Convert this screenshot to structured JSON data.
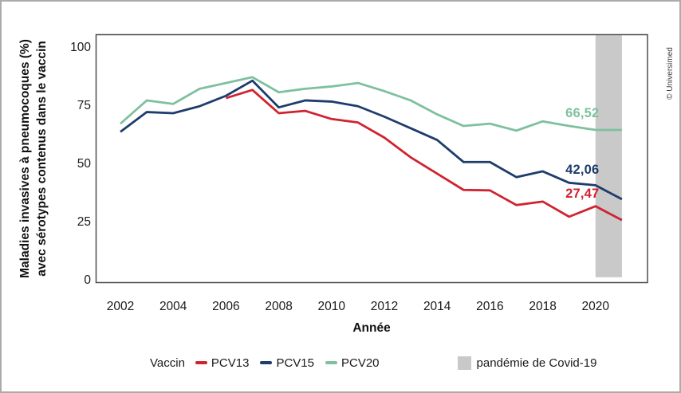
{
  "copyright": "© Universimed",
  "chart_data": {
    "type": "line",
    "title": "",
    "xlabel": "Année",
    "ylabel_line1": "Maladies invasives à pneumocoques (%)",
    "ylabel_line2": "avec sérotypes contenus dans le vaccin",
    "x_ticks": [
      2002,
      2004,
      2006,
      2008,
      2010,
      2012,
      2014,
      2016,
      2018,
      2020
    ],
    "y_ticks": [
      100,
      75,
      50,
      25,
      0
    ],
    "xlim": [
      2002,
      2021
    ],
    "ylim": [
      0,
      100
    ],
    "grid": false,
    "legend_title": "Vaccin",
    "legend_position": "bottom",
    "frame_color": "#4c4c4c",
    "series": [
      {
        "name": "PCV13",
        "color": "#d02330",
        "end_label": "27,47",
        "years": [
          2006,
          2007,
          2008,
          2009,
          2010,
          2011,
          2012,
          2013,
          2014,
          2015,
          2016,
          2017,
          2018,
          2019,
          2020,
          2021
        ],
        "values": [
          78.5,
          82.0,
          72.0,
          73.0,
          69.5,
          68.0,
          61.5,
          53.0,
          46.0,
          39.0,
          38.8,
          32.5,
          34.0,
          27.47,
          32.0,
          26.0
        ]
      },
      {
        "name": "PCV15",
        "color": "#1e3c6c",
        "end_label": "42,06",
        "years": [
          2002,
          2003,
          2004,
          2005,
          2006,
          2007,
          2008,
          2009,
          2010,
          2011,
          2012,
          2013,
          2014,
          2015,
          2016,
          2017,
          2018,
          2019,
          2020,
          2021
        ],
        "values": [
          64.0,
          72.5,
          72.0,
          75.0,
          79.5,
          86.0,
          74.5,
          77.5,
          77.0,
          75.0,
          70.5,
          65.5,
          60.5,
          51.0,
          51.0,
          44.5,
          47.0,
          42.06,
          41.0,
          35.0
        ]
      },
      {
        "name": "PCV20",
        "color": "#7fc09e",
        "end_label": "66,52",
        "years": [
          2002,
          2003,
          2004,
          2005,
          2006,
          2007,
          2008,
          2009,
          2010,
          2011,
          2012,
          2013,
          2014,
          2015,
          2016,
          2017,
          2018,
          2019,
          2020,
          2021
        ],
        "values": [
          67.5,
          77.5,
          76.0,
          82.5,
          85.0,
          87.5,
          81.0,
          82.5,
          83.5,
          85.0,
          81.5,
          77.5,
          71.5,
          66.5,
          67.5,
          64.5,
          68.5,
          66.52,
          64.8,
          64.8
        ]
      }
    ],
    "covid_band": {
      "label": "pandémie de Covid-19",
      "color": "#c9c9c9",
      "x_from": 2020,
      "x_to": 2021
    }
  }
}
